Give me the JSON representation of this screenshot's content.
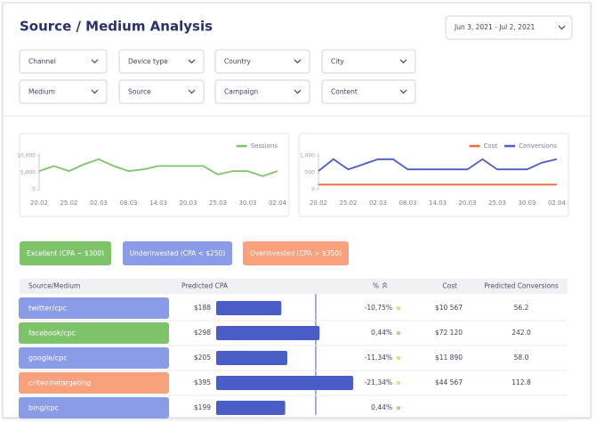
{
  "header": {
    "title": "Source / Medium Analysis",
    "date_range": "Jun 3, 2021 - Jul 2, 2021"
  },
  "filters": [
    "Channel",
    "Device type",
    "Country",
    "City",
    "Medium",
    "Source",
    "Campaign",
    "Content"
  ],
  "chart_data": [
    {
      "type": "line",
      "categories": [
        "20.02",
        null,
        "25.02",
        null,
        "02.03",
        null,
        "08.03",
        null,
        "14.03",
        null,
        "20.03",
        null,
        "25.03",
        null,
        "30.03",
        null,
        "02.04"
      ],
      "series": [
        {
          "name": "Sessions",
          "color": "#7dc36a",
          "values": [
            5500,
            7000,
            5500,
            7500,
            9000,
            7000,
            5500,
            6000,
            7000,
            7000,
            7000,
            7000,
            4500,
            5500,
            5500,
            4000,
            5500
          ]
        }
      ],
      "ylim": [
        0,
        10000
      ],
      "yticks": [
        0,
        {
          "value": 5000,
          "label": "5,000"
        },
        {
          "value": 10000,
          "label": "10,000"
        }
      ],
      "legend": "top-right"
    },
    {
      "type": "line",
      "categories": [
        "20.02",
        null,
        "25.02",
        null,
        "02.03",
        null,
        "08.03",
        null,
        "14.03",
        null,
        "20.03",
        null,
        "25.03",
        null,
        "30.03",
        null,
        "02.04"
      ],
      "series": [
        {
          "name": "Cost",
          "color": "#ef6b3a",
          "values": [
            150,
            150,
            150,
            150,
            150,
            150,
            150,
            150,
            150,
            150,
            150,
            150,
            150,
            150,
            150,
            150,
            150
          ]
        },
        {
          "name": "Conversions",
          "color": "#4a5cc5",
          "values": [
            550,
            900,
            600,
            750,
            900,
            900,
            600,
            600,
            600,
            600,
            600,
            900,
            600,
            600,
            600,
            800,
            900
          ]
        }
      ],
      "ylim": [
        0,
        1000
      ],
      "yticks": [
        0,
        500,
        {
          "value": 1000,
          "label": "1,000"
        }
      ],
      "legend": "top-right"
    }
  ],
  "segments": [
    {
      "label": "Excellent (CPA ~ $300)",
      "color": "#7dc36a"
    },
    {
      "label": "Underinvested (CPA < $250)",
      "color": "#8a9be8"
    },
    {
      "label": "Overinvested (CPA > $350)",
      "color": "#f9a07d"
    }
  ],
  "table": {
    "columns": [
      "Source/Medium",
      "Predicted CPA",
      "%",
      "Cost",
      "Predicted Conversions"
    ],
    "rows": [
      {
        "source": "twitter/cpc",
        "color": "#8a9be8",
        "cpa": {
          "value": 188,
          "label": "$188"
        },
        "change": "-10,75%",
        "cost": "$10 567",
        "conversions": "56.2"
      },
      {
        "source": "facebook/cpc",
        "color": "#7dc36a",
        "cpa": {
          "value": 298,
          "label": "$298"
        },
        "change": "0,44%",
        "cost": "$72 120",
        "conversions": "242.0"
      },
      {
        "source": "google/cpc",
        "color": "#8a9be8",
        "cpa": {
          "value": 205,
          "label": "$205"
        },
        "change": "-11,34%",
        "cost": "$11 890",
        "conversions": "58.0"
      },
      {
        "source": "criteo/retargeting",
        "color": "#f9a07d",
        "cpa": {
          "value": 395,
          "label": "$395"
        },
        "change": "-21,34%",
        "cost": "$44 567",
        "conversions": "112.8"
      },
      {
        "source": "bing/cpc",
        "color": "#8a9be8",
        "cpa": {
          "value": 199,
          "label": "$199"
        },
        "change": "0,44%"
      }
    ]
  }
}
